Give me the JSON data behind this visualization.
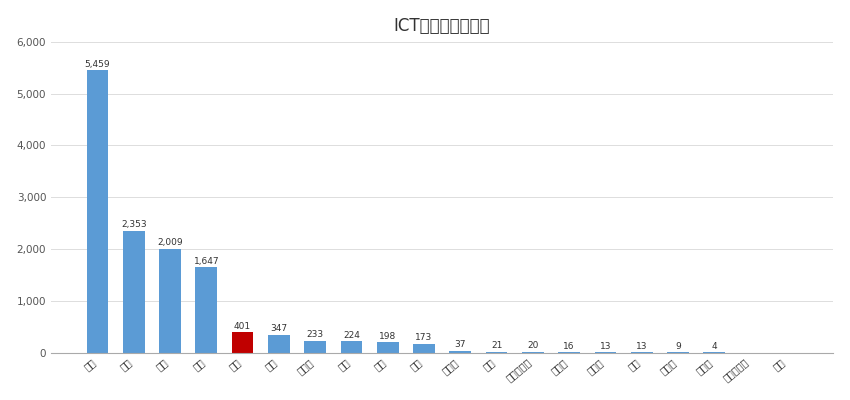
{
  "title": "ICT专利申请（件）",
  "categories": [
    "深圳",
    "东京",
    "首尔",
    "北京",
    "上海",
    "纽约",
    "新加坡",
    "香港",
    "巴黎",
    "伦敦",
    "多伦多",
    "米兰",
    "阿姆斯特丹",
    "马德里",
    "慕尼黑",
    "孟买",
    "奥斯科",
    "墨尔本",
    "约翰内斯堡",
    "迪拜"
  ],
  "values": [
    5459,
    2353,
    2009,
    1647,
    401,
    347,
    233,
    224,
    198,
    173,
    37,
    21,
    20,
    16,
    13,
    13,
    9,
    4,
    0,
    0
  ],
  "bar_colors": [
    "#5B9BD5",
    "#5B9BD5",
    "#5B9BD5",
    "#5B9BD5",
    "#C00000",
    "#5B9BD5",
    "#5B9BD5",
    "#5B9BD5",
    "#5B9BD5",
    "#5B9BD5",
    "#5B9BD5",
    "#5B9BD5",
    "#5B9BD5",
    "#5B9BD5",
    "#5B9BD5",
    "#5B9BD5",
    "#5B9BD5",
    "#5B9BD5",
    "#5B9BD5",
    "#5B9BD5"
  ],
  "ylim": [
    0,
    6000
  ],
  "yticks": [
    0,
    1000,
    2000,
    3000,
    4000,
    5000,
    6000
  ],
  "ytick_labels": [
    "0",
    "1,000",
    "2,000",
    "3,000",
    "4,000",
    "5,000",
    "6,000"
  ],
  "background_color": "#FFFFFF",
  "grid_color": "#DDDDDD",
  "title_fontsize": 12,
  "label_fontsize": 7,
  "value_fontsize": 6.5,
  "tick_fontsize": 7.5
}
